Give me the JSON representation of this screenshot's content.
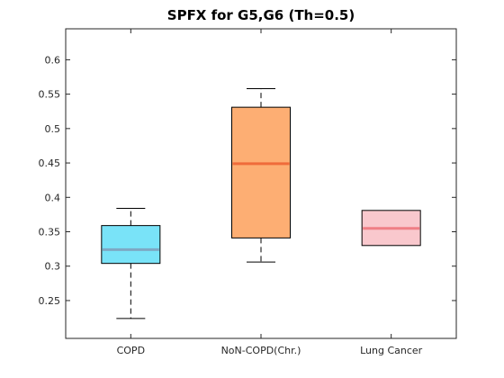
{
  "chart_data": {
    "type": "box",
    "title": "SPFX  for G5,G6 (Th=0.5)",
    "xlabel": "",
    "ylabel": "",
    "ylim": [
      0.195,
      0.645
    ],
    "yticks": [
      "0.25",
      "0.3",
      "0.35",
      "0.4",
      "0.45",
      "0.5",
      "0.55",
      "0.6"
    ],
    "grid": false,
    "categories": [
      "COPD",
      "NoN-COPD(Chr.)",
      "Lung Cancer"
    ],
    "boxes": [
      {
        "category": "COPD",
        "whisker_low": 0.224,
        "q1": 0.304,
        "median": 0.324,
        "q3": 0.359,
        "whisker_high": 0.384,
        "fill": "#79e3f8",
        "median_color": "#7ea8c4"
      },
      {
        "category": "NoN-COPD(Chr.)",
        "whisker_low": 0.306,
        "q1": 0.341,
        "median": 0.449,
        "q3": 0.531,
        "whisker_high": 0.558,
        "fill": "#fdae73",
        "median_color": "#ef6b3b"
      },
      {
        "category": "Lung Cancer",
        "whisker_low": 0.33,
        "q1": 0.33,
        "median": 0.355,
        "q3": 0.381,
        "whisker_high": 0.381,
        "fill": "#f9c8cd",
        "median_color": "#ef7f85"
      }
    ]
  }
}
